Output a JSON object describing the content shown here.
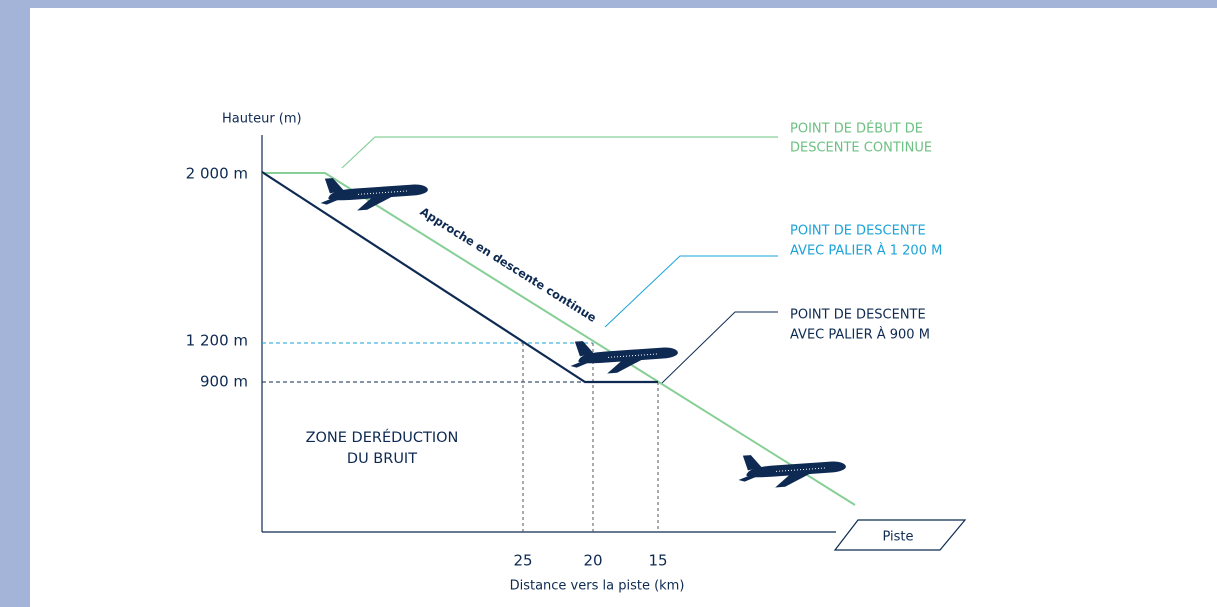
{
  "y_axis": {
    "title": "Hauteur (m)",
    "labels": [
      "2 000 m",
      "1 200 m",
      "900 m"
    ]
  },
  "x_axis": {
    "title": "Distance vers la piste (km)",
    "labels": [
      "25",
      "20",
      "15"
    ]
  },
  "callouts": [
    {
      "lines": [
        "POINT DE DÉBUT DE",
        "DESCENTE CONTINUE"
      ]
    },
    {
      "lines": [
        "POINT DE DESCENTE",
        "AVEC PALIER À 1 200 M"
      ]
    },
    {
      "lines": [
        "POINT DE DESCENTE",
        "AVEC PALIER À 900 M"
      ]
    }
  ],
  "path_label": "Approche en descente continue",
  "zone": {
    "lines": [
      "ZONE DERÉDUCTION",
      "DU BRUIT"
    ]
  },
  "runway": "Piste"
}
